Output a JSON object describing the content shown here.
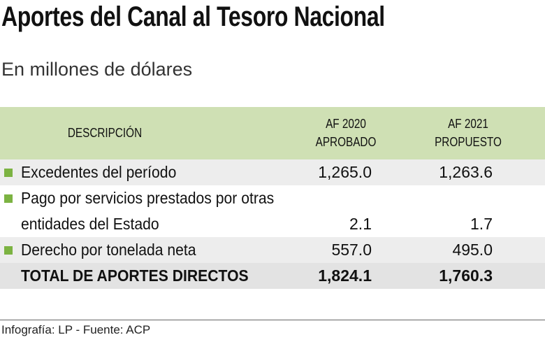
{
  "title": "Aportes del Canal al Tesoro Nacional",
  "subtitle": "En millones de dólares",
  "table": {
    "header": [
      "DESCRIPCIÓN",
      [
        "AF 2020",
        "APROBADO"
      ],
      [
        "AF 2021",
        "PROPUESTO"
      ]
    ],
    "rows": [
      [
        "Excedentes del período",
        "1,265.0",
        "1,263.6"
      ],
      [
        "Pago por servicios prestados por otras entidades del Estado",
        "2.1",
        "1.7"
      ],
      [
        "Derecho por tonelada neta",
        "557.0",
        "495.0"
      ]
    ],
    "total": [
      "TOTAL DE APORTES DIRECTOS",
      "1,824.1",
      "1,760.3"
    ]
  },
  "footer": "Infografía: LP - Fuente: ACP"
}
